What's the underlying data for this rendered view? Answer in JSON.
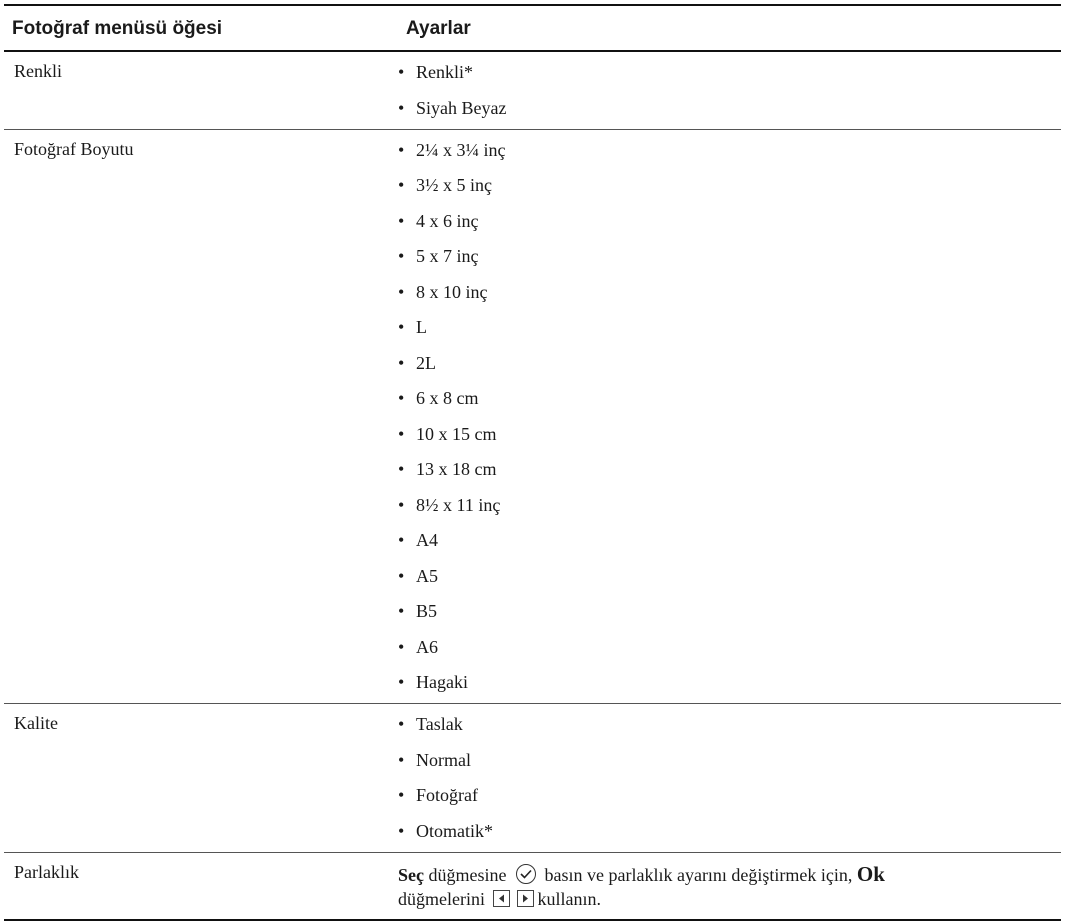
{
  "table": {
    "headers": {
      "item": "Fotoğraf menüsü öğesi",
      "settings": "Ayarlar"
    },
    "bullet": "•",
    "rows": [
      {
        "item": "Renkli",
        "options": [
          "Renkli*",
          "Siyah Beyaz"
        ]
      },
      {
        "item": "Fotoğraf Boyutu",
        "options": [
          "2¼ x 3¼ inç",
          "3½ x 5 inç",
          "4 x 6 inç",
          "5 x 7 inç",
          "8 x 10 inç",
          "L",
          "2L",
          "6 x 8 cm",
          "10 x 15 cm",
          "13 x 18 cm",
          "8½ x 11 inç",
          "A4",
          "A5",
          "B5",
          "A6",
          "Hagaki"
        ]
      },
      {
        "item": "Kalite",
        "options": [
          "Taslak",
          "Normal",
          "Fotoğraf",
          "Otomatik*"
        ]
      }
    ],
    "brightness": {
      "item": "Parlaklık",
      "select_word": "Seç",
      "text_1": " düğmesine ",
      "text_2": " basın ve parlaklık ayarını değiştirmek için, ",
      "ok_word": "Ok",
      "text_3": "düğmelerini ",
      "text_4": "kullanın.",
      "icons": [
        "check-circle-icon",
        "left-arrow-key-icon",
        "right-arrow-key-icon"
      ]
    }
  }
}
